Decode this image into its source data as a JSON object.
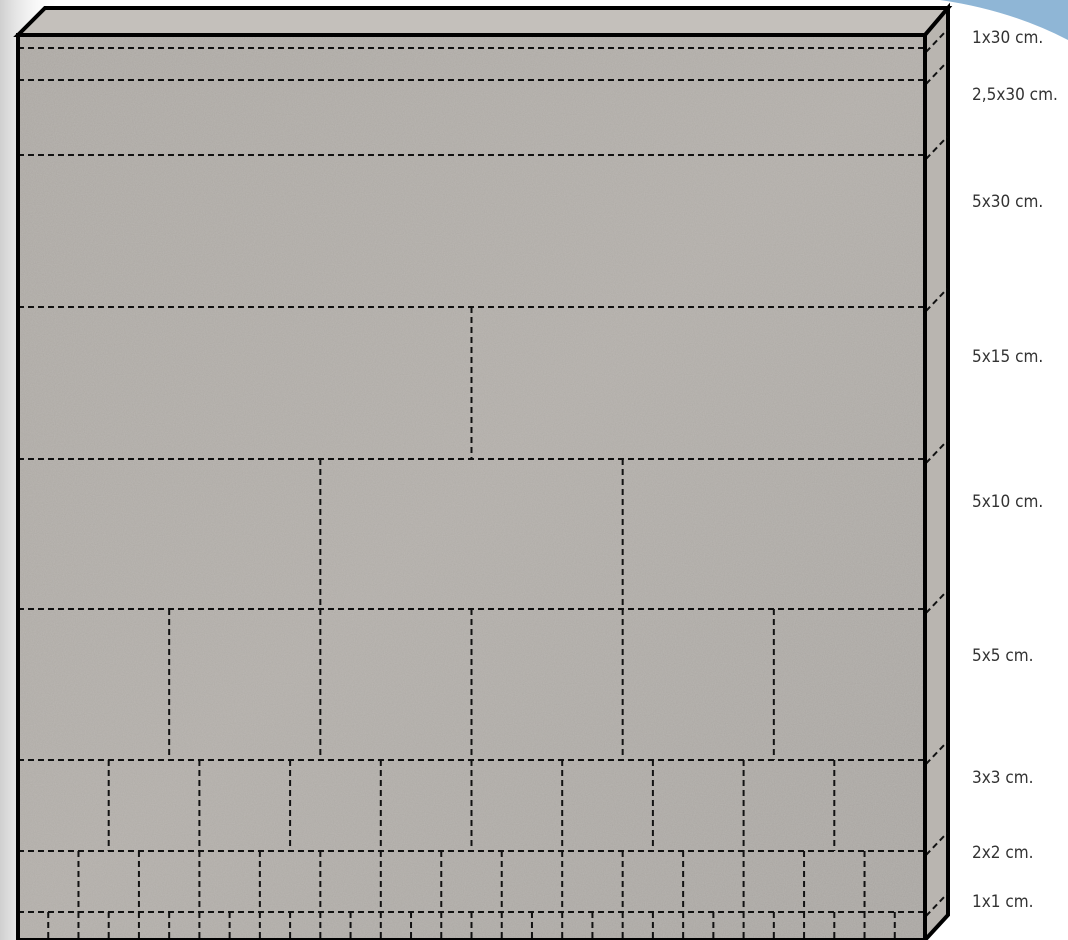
{
  "labels": [
    "1x30 cm.",
    "2,5x30 cm.",
    "5x30 cm.",
    "5x15 cm.",
    "5x10 cm.",
    "5x5 cm.",
    "3x3 cm.",
    "2x2 cm.",
    "1x1 cm."
  ]
}
